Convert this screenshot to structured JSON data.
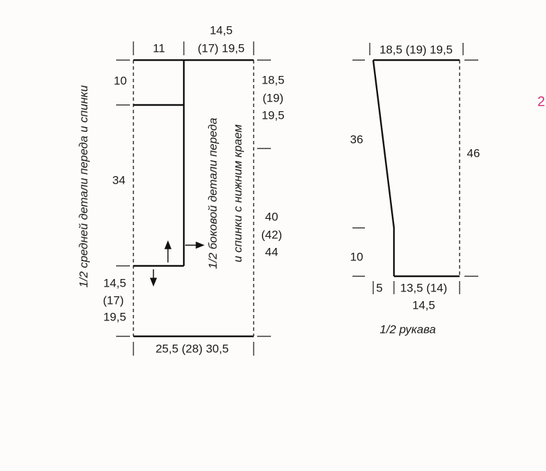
{
  "body": {
    "labels": {
      "top_left": "11",
      "top_right_1": "14,5",
      "top_right_2": "(17) 19,5",
      "left_top": "10",
      "left_mid": "34",
      "left_bot_1": "14,5",
      "left_bot_2": "(17)",
      "left_bot_3": "19,5",
      "bottom": "25,5 (28) 30,5",
      "right_top_1": "18,5",
      "right_top_2": "(19)",
      "right_top_3": "19,5",
      "right_mid_1": "40",
      "right_mid_2": "(42)",
      "right_mid_3": "44"
    },
    "middle_piece": "1/2 средней детали переда и спинки",
    "side_piece_1": "1/2 боковой детали переда",
    "side_piece_2": "и спинки с нижним краем"
  },
  "sleeve": {
    "labels": {
      "top": "18,5 (19) 19,5",
      "left_top": "36",
      "left_bot": "10",
      "right": "46",
      "bottom_left": "5",
      "bottom_mid": "13,5 (14)",
      "bottom_mid_2": "14,5"
    },
    "title": "1/2 рукава"
  },
  "page_marker": "2"
}
